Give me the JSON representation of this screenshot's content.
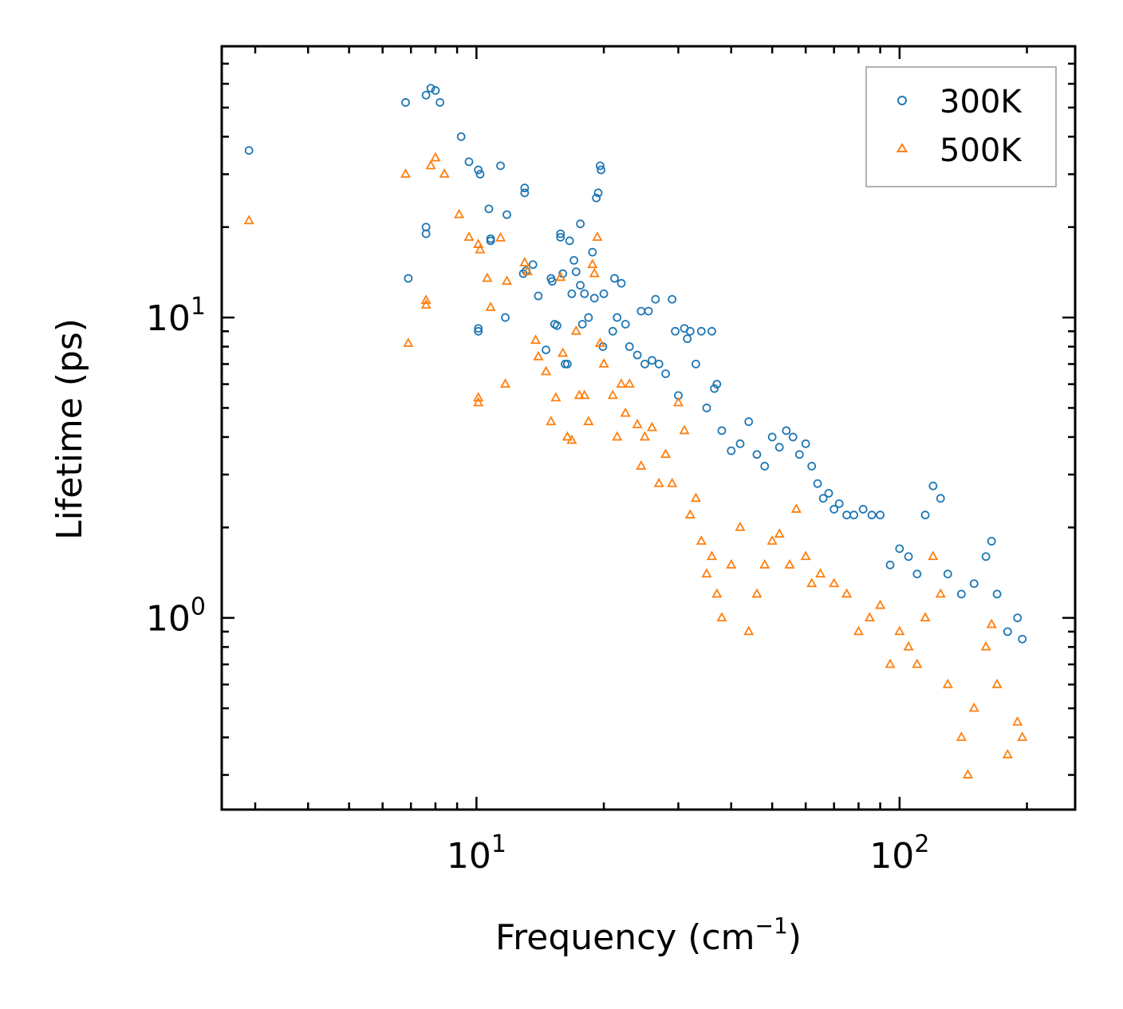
{
  "chart_data": {
    "type": "scatter",
    "xscale": "log",
    "yscale": "log",
    "xlabel_text": "Frequency (cm",
    "xlabel_sup": "−1",
    "xlabel_close": ")",
    "ylabel": "Lifetime (ps)",
    "xlim": [
      2.5,
      260
    ],
    "ylim": [
      0.23,
      80
    ],
    "x_major_ticks": [
      {
        "value": 10,
        "base": "10",
        "exp": "1"
      },
      {
        "value": 100,
        "base": "10",
        "exp": "2"
      }
    ],
    "y_major_ticks": [
      {
        "value": 1,
        "base": "10",
        "exp": "0"
      },
      {
        "value": 10,
        "base": "10",
        "exp": "1"
      }
    ],
    "legend": {
      "position": "top-right"
    },
    "series": [
      {
        "name": "300K",
        "marker": "circle",
        "color": "#1f77b4",
        "points": [
          [
            2.9,
            36
          ],
          [
            6.8,
            52
          ],
          [
            7.6,
            55
          ],
          [
            7.8,
            58
          ],
          [
            8.0,
            57
          ],
          [
            8.2,
            52
          ],
          [
            7.6,
            19
          ],
          [
            7.6,
            20
          ],
          [
            6.9,
            13.5
          ],
          [
            9.2,
            40
          ],
          [
            9.6,
            33
          ],
          [
            10.1,
            31
          ],
          [
            10.2,
            30
          ],
          [
            10.7,
            23
          ],
          [
            11.4,
            32
          ],
          [
            11.8,
            22
          ],
          [
            10.1,
            9
          ],
          [
            10.1,
            9.2
          ],
          [
            10.8,
            18
          ],
          [
            10.8,
            18.3
          ],
          [
            11.7,
            10
          ],
          [
            12.9,
            14
          ],
          [
            13.0,
            26
          ],
          [
            13.0,
            27
          ],
          [
            13.1,
            14.3
          ],
          [
            13.6,
            15
          ],
          [
            14.0,
            11.8
          ],
          [
            14.6,
            7.8
          ],
          [
            15.0,
            13.5
          ],
          [
            15.1,
            13.2
          ],
          [
            15.3,
            9.5
          ],
          [
            15.5,
            9.4
          ],
          [
            15.8,
            19
          ],
          [
            15.8,
            18.5
          ],
          [
            16.0,
            14
          ],
          [
            16.2,
            7
          ],
          [
            16.4,
            7
          ],
          [
            16.6,
            18
          ],
          [
            16.8,
            12
          ],
          [
            17.0,
            15.5
          ],
          [
            17.2,
            14.2
          ],
          [
            17.6,
            20.5
          ],
          [
            17.6,
            12.8
          ],
          [
            17.8,
            9.5
          ],
          [
            18.0,
            12
          ],
          [
            18.4,
            10
          ],
          [
            18.8,
            16.5
          ],
          [
            19.0,
            11.6
          ],
          [
            19.2,
            25
          ],
          [
            19.4,
            26
          ],
          [
            19.6,
            32
          ],
          [
            19.7,
            31
          ],
          [
            19.9,
            8
          ],
          [
            20.0,
            12
          ],
          [
            21.0,
            9
          ],
          [
            21.2,
            13.5
          ],
          [
            21.5,
            10
          ],
          [
            22.0,
            13
          ],
          [
            22.5,
            9.5
          ],
          [
            23.0,
            8
          ],
          [
            24.0,
            7.5
          ],
          [
            24.5,
            10.5
          ],
          [
            25.0,
            7
          ],
          [
            25.5,
            10.5
          ],
          [
            26.0,
            7.2
          ],
          [
            26.5,
            11.5
          ],
          [
            27.0,
            7
          ],
          [
            28.0,
            6.5
          ],
          [
            29.0,
            11.5
          ],
          [
            29.5,
            9
          ],
          [
            30.0,
            5.5
          ],
          [
            31.0,
            9.2
          ],
          [
            31.5,
            8.5
          ],
          [
            32.0,
            9
          ],
          [
            33.0,
            7
          ],
          [
            34.0,
            9
          ],
          [
            35.0,
            5
          ],
          [
            36.0,
            9
          ],
          [
            36.5,
            5.8
          ],
          [
            37.0,
            6
          ],
          [
            38.0,
            4.2
          ],
          [
            40.0,
            3.6
          ],
          [
            42.0,
            3.8
          ],
          [
            44.0,
            4.5
          ],
          [
            46.0,
            3.5
          ],
          [
            48.0,
            3.2
          ],
          [
            50.0,
            4
          ],
          [
            52.0,
            3.7
          ],
          [
            54.0,
            4.2
          ],
          [
            56.0,
            4
          ],
          [
            58.0,
            3.5
          ],
          [
            60.0,
            3.8
          ],
          [
            62.0,
            3.2
          ],
          [
            64.0,
            2.8
          ],
          [
            66.0,
            2.5
          ],
          [
            68.0,
            2.6
          ],
          [
            70.0,
            2.3
          ],
          [
            72.0,
            2.4
          ],
          [
            75.0,
            2.2
          ],
          [
            78.0,
            2.2
          ],
          [
            82.0,
            2.3
          ],
          [
            86.0,
            2.2
          ],
          [
            90.0,
            2.2
          ],
          [
            95.0,
            1.5
          ],
          [
            100.0,
            1.7
          ],
          [
            105.0,
            1.6
          ],
          [
            110.0,
            1.4
          ],
          [
            115.0,
            2.2
          ],
          [
            120.0,
            2.75
          ],
          [
            125.0,
            2.5
          ],
          [
            130.0,
            1.4
          ],
          [
            140.0,
            1.2
          ],
          [
            150.0,
            1.3
          ],
          [
            160.0,
            1.6
          ],
          [
            165.0,
            1.8
          ],
          [
            170.0,
            1.2
          ],
          [
            180.0,
            0.9
          ],
          [
            190.0,
            1.0
          ],
          [
            195.0,
            0.85
          ]
        ]
      },
      {
        "name": "500K",
        "marker": "triangle",
        "color": "#ff7f0e",
        "points": [
          [
            2.9,
            21
          ],
          [
            6.8,
            30
          ],
          [
            6.9,
            8.2
          ],
          [
            7.6,
            11.4
          ],
          [
            7.8,
            32
          ],
          [
            8.0,
            34
          ],
          [
            8.4,
            30
          ],
          [
            7.6,
            11
          ],
          [
            9.1,
            22
          ],
          [
            9.6,
            18.5
          ],
          [
            10.1,
            17.5
          ],
          [
            10.2,
            16.8
          ],
          [
            10.6,
            13.5
          ],
          [
            10.8,
            10.8
          ],
          [
            10.1,
            5.4
          ],
          [
            10.1,
            5.2
          ],
          [
            11.4,
            18.4
          ],
          [
            11.8,
            13.2
          ],
          [
            11.7,
            6
          ],
          [
            13.0,
            15.2
          ],
          [
            13.2,
            14.2
          ],
          [
            13.8,
            8.4
          ],
          [
            14.0,
            7.4
          ],
          [
            14.6,
            6.6
          ],
          [
            15.0,
            4.5
          ],
          [
            15.4,
            5.4
          ],
          [
            15.8,
            13.6
          ],
          [
            16.0,
            7.6
          ],
          [
            16.4,
            4
          ],
          [
            16.8,
            3.9
          ],
          [
            17.2,
            9
          ],
          [
            17.5,
            5.5
          ],
          [
            18.0,
            5.5
          ],
          [
            18.4,
            4.5
          ],
          [
            18.8,
            15
          ],
          [
            19.0,
            14
          ],
          [
            19.3,
            18.5
          ],
          [
            19.6,
            8.2
          ],
          [
            20.0,
            7
          ],
          [
            21.0,
            5.5
          ],
          [
            21.5,
            4
          ],
          [
            22.0,
            6
          ],
          [
            22.5,
            4.8
          ],
          [
            23.0,
            6
          ],
          [
            24.0,
            4.4
          ],
          [
            24.5,
            3.2
          ],
          [
            25.0,
            4
          ],
          [
            26.0,
            4.3
          ],
          [
            27.0,
            2.8
          ],
          [
            28.0,
            3.5
          ],
          [
            29.0,
            2.8
          ],
          [
            30.0,
            5.2
          ],
          [
            31.0,
            4.2
          ],
          [
            32.0,
            2.2
          ],
          [
            33.0,
            2.5
          ],
          [
            34.0,
            1.8
          ],
          [
            35.0,
            1.4
          ],
          [
            36.0,
            1.6
          ],
          [
            37.0,
            1.2
          ],
          [
            38.0,
            1.0
          ],
          [
            40.0,
            1.5
          ],
          [
            42.0,
            2
          ],
          [
            44.0,
            0.9
          ],
          [
            46.0,
            1.2
          ],
          [
            48.0,
            1.5
          ],
          [
            50.0,
            1.8
          ],
          [
            52.0,
            1.9
          ],
          [
            55.0,
            1.5
          ],
          [
            57.0,
            2.3
          ],
          [
            60.0,
            1.6
          ],
          [
            62.0,
            1.3
          ],
          [
            65.0,
            1.4
          ],
          [
            70.0,
            1.3
          ],
          [
            75.0,
            1.2
          ],
          [
            80.0,
            0.9
          ],
          [
            85.0,
            1.0
          ],
          [
            90.0,
            1.1
          ],
          [
            95.0,
            0.7
          ],
          [
            100.0,
            0.9
          ],
          [
            105.0,
            0.8
          ],
          [
            110.0,
            0.7
          ],
          [
            115.0,
            1.0
          ],
          [
            120.0,
            1.6
          ],
          [
            125.0,
            1.2
          ],
          [
            130.0,
            0.6
          ],
          [
            140.0,
            0.4
          ],
          [
            145.0,
            0.3
          ],
          [
            150.0,
            0.5
          ],
          [
            160.0,
            0.8
          ],
          [
            165.0,
            0.95
          ],
          [
            170.0,
            0.6
          ],
          [
            180.0,
            0.35
          ],
          [
            190.0,
            0.45
          ],
          [
            195.0,
            0.4
          ]
        ]
      }
    ]
  }
}
